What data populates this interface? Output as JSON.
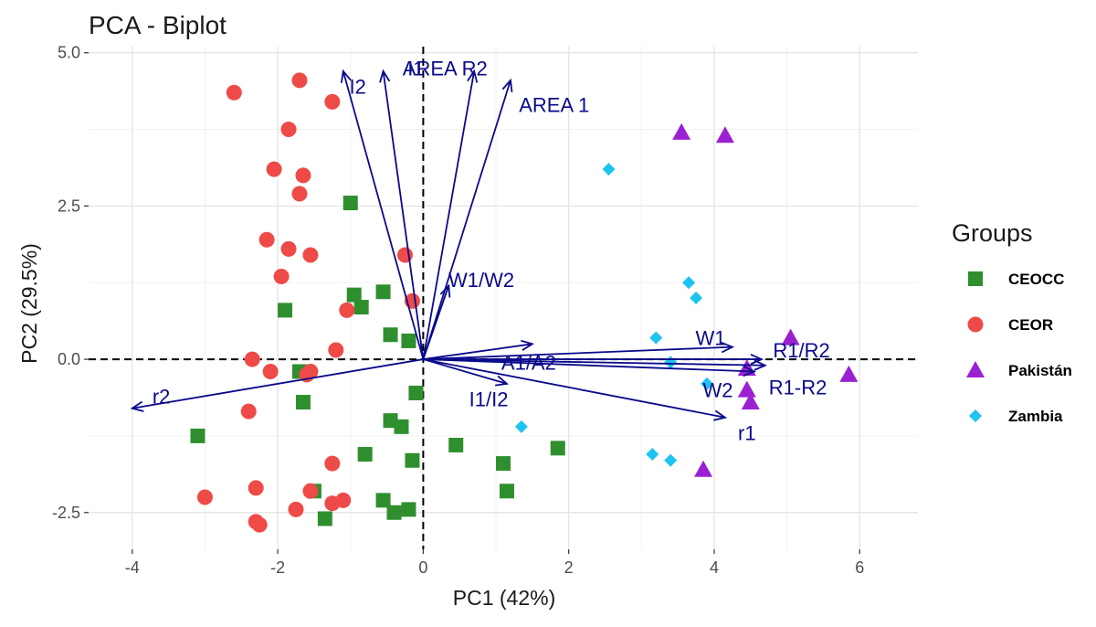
{
  "chart_data": {
    "type": "scatter",
    "title": "PCA - Biplot",
    "xlabel": "PC1 (42%)",
    "ylabel": "PC2 (29.5%)",
    "xlim": [
      -4.6,
      6.8
    ],
    "ylim": [
      -3.1,
      5.1
    ],
    "x_ticks": [
      -4,
      -2,
      0,
      2,
      4,
      6
    ],
    "y_ticks": [
      -2.5,
      0.0,
      2.5,
      5.0
    ],
    "y_tick_labels": [
      "-2.5",
      "0.0",
      "2.5",
      "5.0"
    ],
    "grid": true,
    "legend_title": "Groups",
    "legend_position": "right",
    "reference_lines": {
      "x": 0,
      "y": 0,
      "style": "dashed"
    },
    "series": [
      {
        "name": "CEOCC",
        "shape": "square",
        "color": "#2f8f2f",
        "x": [
          -1.0,
          -0.95,
          -0.85,
          -0.55,
          -0.45,
          -0.2,
          -1.9,
          -1.7,
          -1.65,
          -0.1,
          -0.45,
          -0.3,
          -0.8,
          -0.15,
          -3.1,
          -1.5,
          -1.35,
          -0.55,
          -0.2,
          -0.4,
          0.45,
          1.1,
          1.15,
          1.85
        ],
        "y": [
          2.55,
          1.05,
          0.85,
          1.1,
          0.4,
          0.3,
          0.8,
          -0.2,
          -0.7,
          -0.55,
          -1.0,
          -1.1,
          -1.55,
          -1.65,
          -1.25,
          -2.15,
          -2.6,
          -2.3,
          -2.45,
          -2.5,
          -1.4,
          -1.7,
          -2.15,
          -1.45
        ]
      },
      {
        "name": "CEOR",
        "shape": "circle",
        "color": "#ee4a48",
        "x": [
          -2.6,
          -1.7,
          -1.25,
          -1.85,
          -2.05,
          -1.65,
          -1.7,
          -2.15,
          -1.85,
          -1.55,
          -1.95,
          -0.25,
          -0.15,
          -1.05,
          -1.2,
          -2.35,
          -2.1,
          -1.55,
          -1.6,
          -2.4,
          -1.25,
          -3.0,
          -2.3,
          -1.55,
          -1.25,
          -1.1,
          -1.75,
          -2.3,
          -2.25
        ],
        "y": [
          4.35,
          4.55,
          4.2,
          3.75,
          3.1,
          3.0,
          2.7,
          1.95,
          1.8,
          1.7,
          1.35,
          1.7,
          0.95,
          0.8,
          0.15,
          0.0,
          -0.2,
          -0.2,
          -0.25,
          -0.85,
          -1.7,
          -2.25,
          -2.1,
          -2.15,
          -2.35,
          -2.3,
          -2.45,
          -2.65,
          -2.7
        ]
      },
      {
        "name": "Pakistán",
        "shape": "triangle",
        "color": "#9b20d2",
        "x": [
          3.55,
          4.15,
          5.05,
          4.45,
          5.85,
          4.45,
          4.5,
          3.85
        ],
        "y": [
          3.7,
          3.65,
          0.35,
          -0.15,
          -0.25,
          -0.5,
          -0.7,
          -1.8
        ]
      },
      {
        "name": "Zambia",
        "shape": "diamond",
        "color": "#1ec4f0",
        "x": [
          2.55,
          3.65,
          3.75,
          3.2,
          3.4,
          3.9,
          1.35,
          3.15,
          3.4
        ],
        "y": [
          3.1,
          1.25,
          1.0,
          0.35,
          -0.05,
          -0.4,
          -1.1,
          -1.55,
          -1.65
        ]
      }
    ],
    "loadings": {
      "color": "#0a0a8c",
      "vectors": [
        {
          "label": "I2",
          "x": -1.1,
          "y": 4.7,
          "label_x": -0.9,
          "label_y": 4.45
        },
        {
          "label": "I1",
          "x": -0.55,
          "y": 4.7,
          "label_x": -0.1,
          "label_y": 4.75
        },
        {
          "label": "AREA R2",
          "x": 0.7,
          "y": 4.7,
          "label_x": 0.3,
          "label_y": 4.75
        },
        {
          "label": "AREA 1",
          "x": 1.2,
          "y": 4.55,
          "label_x": 1.8,
          "label_y": 4.15
        },
        {
          "label": "W1/W2",
          "x": 0.35,
          "y": 1.2,
          "label_x": 0.8,
          "label_y": 1.3
        },
        {
          "label": "W1",
          "x": 4.25,
          "y": 0.2,
          "label_x": 3.95,
          "label_y": 0.35
        },
        {
          "label": "R1/R2",
          "x": 4.65,
          "y": 0.0,
          "label_x": 5.2,
          "label_y": 0.15
        },
        {
          "label": "R1-R2",
          "x": 4.7,
          "y": -0.1,
          "label_x": 5.15,
          "label_y": -0.45
        },
        {
          "label": "W2",
          "x": 4.55,
          "y": -0.2,
          "label_x": 4.05,
          "label_y": -0.5
        },
        {
          "label": "r1",
          "x": 4.15,
          "y": -0.95,
          "label_x": 4.45,
          "label_y": -1.2
        },
        {
          "label": "A1/A2",
          "x": 1.5,
          "y": 0.25,
          "label_x": 1.45,
          "label_y": -0.05
        },
        {
          "label": "I1/I2",
          "x": 1.15,
          "y": -0.4,
          "label_x": 0.9,
          "label_y": -0.65
        },
        {
          "label": "r2",
          "x": -4.0,
          "y": -0.8,
          "label_x": -3.6,
          "label_y": -0.6
        }
      ]
    }
  }
}
